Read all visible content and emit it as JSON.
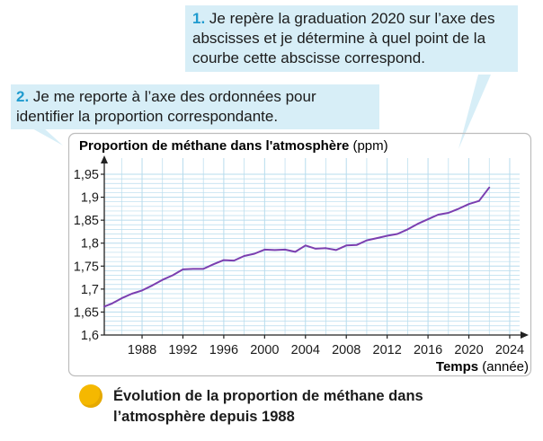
{
  "callouts": [
    {
      "number": "1.",
      "text": "Je repère la graduation 2020 sur l’axe des abscisses et je détermine à quel point de la courbe cette abscisse correspond."
    },
    {
      "number": "2.",
      "text": "Je me reporte à l’axe des ordonnées pour identifier la proportion correspondante."
    }
  ],
  "caption": "Évolution de la proportion de méthane dans l’atmosphère depuis 1988",
  "colors": {
    "line": "#7b3fb0",
    "grid": "#b7dced",
    "bubble": "#d7eef7",
    "accent": "#1f9bcf",
    "bullet": "#f5b800"
  },
  "chart_data": {
    "type": "line",
    "title": "Proportion de méthane dans l'atmosphère",
    "title_unit": "(ppm)",
    "xlabel": "Temps",
    "xlabel_unit": "(année)",
    "xlim": [
      1984.3,
      2025.5
    ],
    "ylim": [
      1.6,
      1.95
    ],
    "x_ticks": [
      "1988",
      "1992",
      "1996",
      "2000",
      "2004",
      "2008",
      "2012",
      "2016",
      "2020",
      "2024"
    ],
    "y_ticks": [
      "1,95",
      "1,9",
      "1,85",
      "1,8",
      "1,75",
      "1,7",
      "1,65",
      "1,6"
    ],
    "grid": true,
    "series": [
      {
        "x": [
          1984.3,
          1985,
          1986,
          1987,
          1988,
          1989,
          1990,
          1991,
          1992,
          1993,
          1994,
          1995,
          1996,
          1997,
          1998,
          1999,
          2000,
          2001,
          2002,
          2003,
          2004,
          2005,
          2006,
          2007,
          2008,
          2009,
          2010,
          2011,
          2012,
          2013,
          2014,
          2015,
          2016,
          2017,
          2018,
          2019,
          2020,
          2021,
          2022
        ],
        "y": [
          1.662,
          1.668,
          1.68,
          1.69,
          1.697,
          1.708,
          1.72,
          1.73,
          1.743,
          1.744,
          1.744,
          1.754,
          1.763,
          1.762,
          1.772,
          1.777,
          1.786,
          1.785,
          1.786,
          1.781,
          1.795,
          1.788,
          1.789,
          1.785,
          1.795,
          1.796,
          1.806,
          1.811,
          1.816,
          1.82,
          1.83,
          1.842,
          1.852,
          1.862,
          1.866,
          1.875,
          1.885,
          1.892,
          1.921
        ]
      }
    ]
  }
}
